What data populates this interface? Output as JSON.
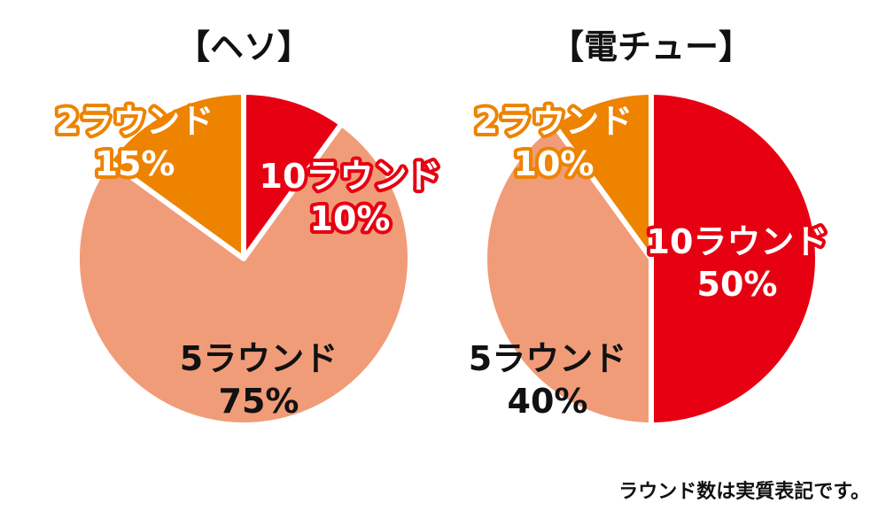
{
  "colors": {
    "round10": "#E60012",
    "round5": "#F19C79",
    "round2": "#EE8300",
    "separator": "#ffffff"
  },
  "chart_data": [
    {
      "type": "pie",
      "title": "【ヘソ】",
      "slices": [
        {
          "name": "10ラウンド",
          "value": 10,
          "label": "10%",
          "color_key": "round10"
        },
        {
          "name": "5ラウンド",
          "value": 75,
          "label": "75%",
          "color_key": "round5"
        },
        {
          "name": "2ラウンド",
          "value": 15,
          "label": "15%",
          "color_key": "round2"
        }
      ]
    },
    {
      "type": "pie",
      "title": "【電チュー】",
      "slices": [
        {
          "name": "10ラウンド",
          "value": 50,
          "label": "50%",
          "color_key": "round10"
        },
        {
          "name": "5ラウンド",
          "value": 40,
          "label": "40%",
          "color_key": "round5"
        },
        {
          "name": "2ラウンド",
          "value": 10,
          "label": "10%",
          "color_key": "round2"
        }
      ]
    }
  ],
  "footnote": "ラウンド数は実質表記です。"
}
